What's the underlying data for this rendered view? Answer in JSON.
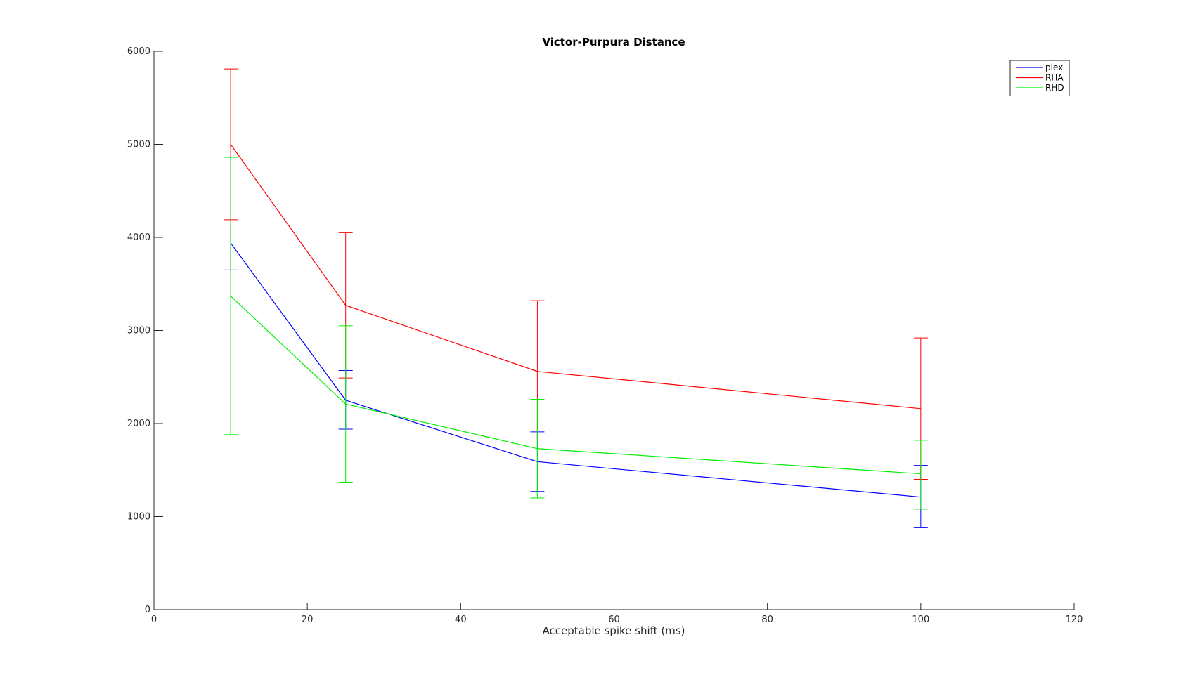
{
  "chart_data": {
    "type": "line",
    "title": "Victor-Purpura Distance",
    "xlabel": "Acceptable spike shift (ms)",
    "ylabel": "",
    "xlim": [
      0,
      120
    ],
    "ylim": [
      0,
      6000
    ],
    "xticks": [
      0,
      20,
      40,
      60,
      80,
      100,
      120
    ],
    "yticks": [
      0,
      1000,
      2000,
      3000,
      4000,
      5000,
      6000
    ],
    "grid": false,
    "legend_position": "top-right",
    "x": [
      10,
      25,
      50,
      100
    ],
    "series": [
      {
        "name": "plex",
        "color": "#0000ff",
        "values": [
          3940,
          2250,
          1590,
          1210
        ],
        "err_low": [
          3650,
          1940,
          1270,
          880
        ],
        "err_high": [
          4230,
          2570,
          1910,
          1550
        ]
      },
      {
        "name": "RHA",
        "color": "#ff0000",
        "values": [
          5000,
          3270,
          2560,
          2160
        ],
        "err_low": [
          4190,
          2490,
          1800,
          1400
        ],
        "err_high": [
          5810,
          4050,
          3320,
          2920
        ]
      },
      {
        "name": "RHD",
        "color": "#00ee00",
        "values": [
          3370,
          2210,
          1730,
          1460
        ],
        "err_low": [
          1880,
          1370,
          1200,
          1080
        ],
        "err_high": [
          4860,
          3050,
          2260,
          1820
        ]
      }
    ]
  }
}
